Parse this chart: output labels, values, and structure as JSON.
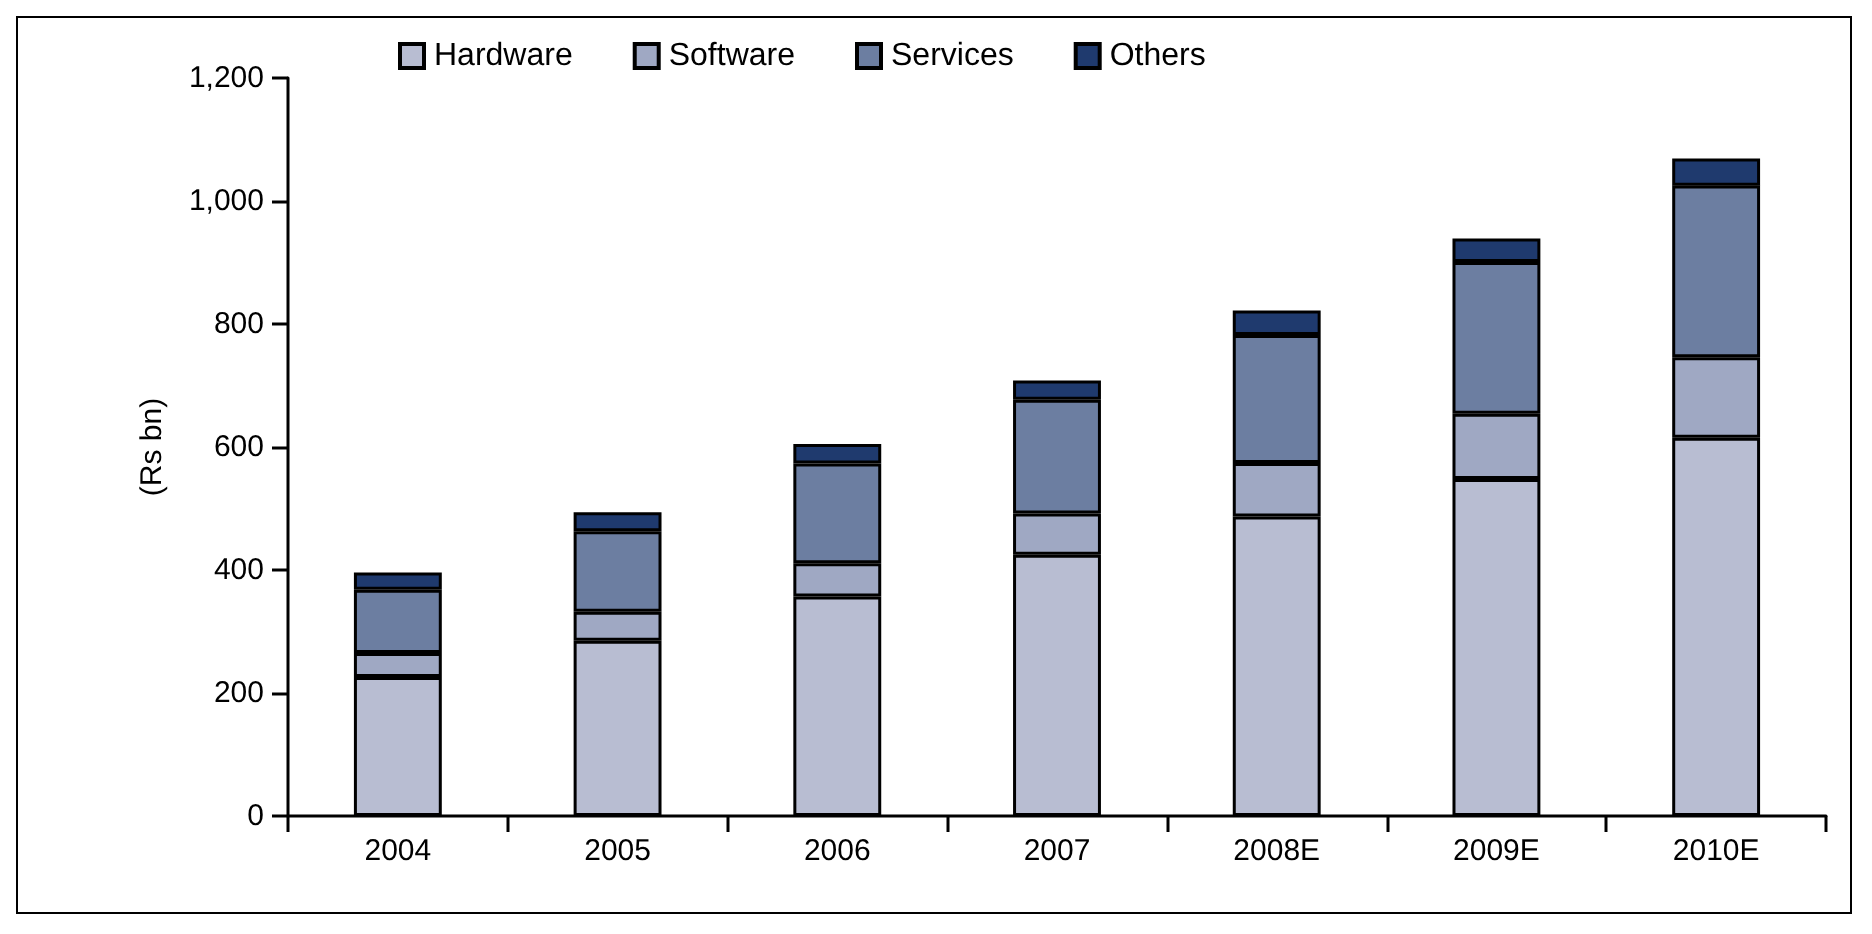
{
  "chart_data": {
    "type": "bar",
    "stacked": true,
    "ylabel": "(Rs bn)",
    "categories": [
      "2004",
      "2005",
      "2006",
      "2007",
      "2008E",
      "2009E",
      "2010E"
    ],
    "series": [
      {
        "name": "Hardware",
        "color": "#b8bdd2",
        "values": [
          226,
          285,
          357,
          425,
          487,
          548,
          615
        ]
      },
      {
        "name": "Software",
        "color": "#9fa8c3",
        "values": [
          39,
          47,
          54,
          67,
          87,
          106,
          131
        ]
      },
      {
        "name": "Services",
        "color": "#6c7ea1",
        "values": [
          103,
          131,
          162,
          185,
          208,
          247,
          279
        ]
      },
      {
        "name": "Others",
        "color": "#1f3a6e",
        "values": [
          28,
          31,
          32,
          31,
          40,
          38,
          44
        ]
      }
    ],
    "ylim": [
      0,
      1200
    ],
    "yticks": [
      0,
      200,
      400,
      600,
      800,
      {
        "value": 1000,
        "label": "1,000"
      },
      {
        "value": 1200,
        "label": "1,200"
      }
    ],
    "grid": false,
    "legend": "top"
  }
}
